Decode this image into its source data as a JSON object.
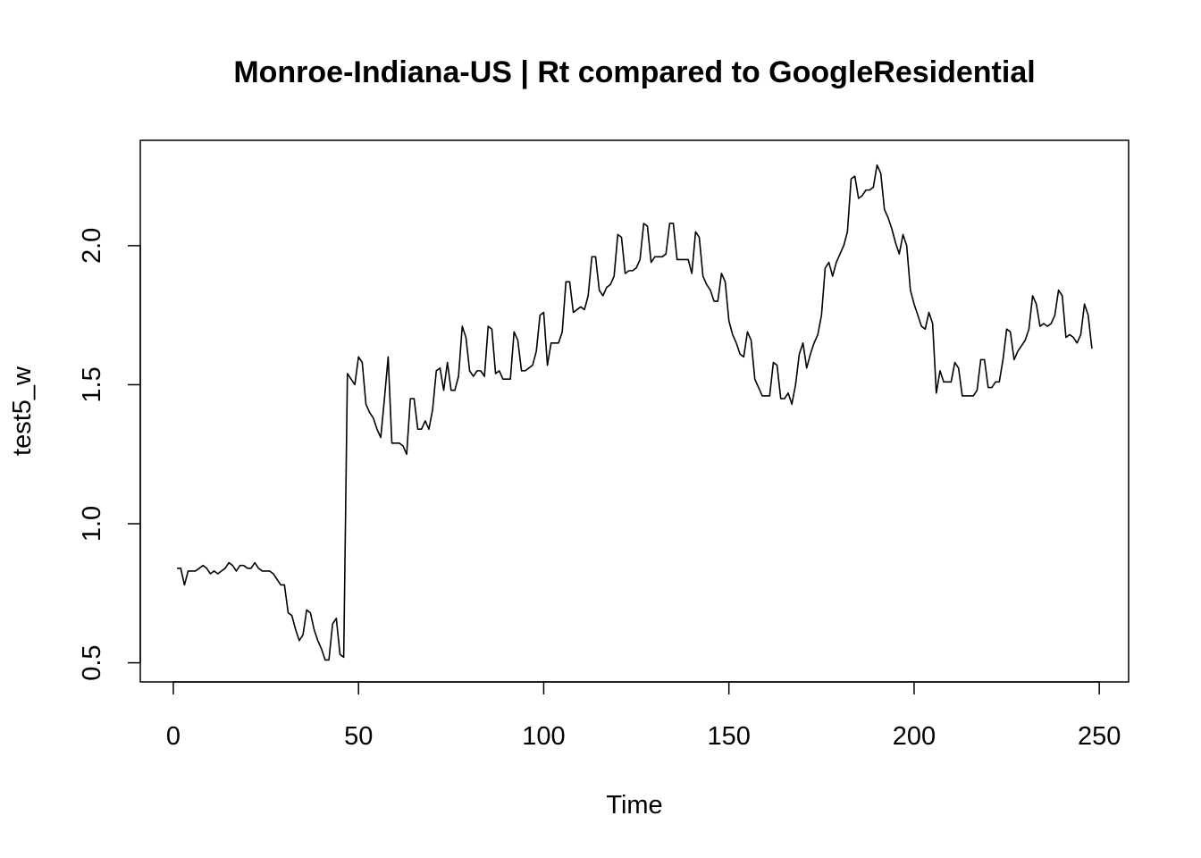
{
  "chart_data": {
    "type": "line",
    "title": "Monroe-Indiana-US | Rt compared to GoogleResidential",
    "xlabel": "Time",
    "ylabel": "test5_w",
    "xlim": [
      -8.92,
      257.92
    ],
    "ylim": [
      0.4312,
      2.3788
    ],
    "x_ticks": [
      0,
      50,
      100,
      150,
      200,
      250
    ],
    "y_ticks": [
      0.5,
      1.0,
      1.5,
      2.0
    ],
    "x_tick_labels": [
      "0",
      "50",
      "100",
      "150",
      "200",
      "250"
    ],
    "y_tick_labels": [
      "0.5",
      "1.0",
      "1.5",
      "2.0"
    ],
    "grid": false,
    "legend": "none",
    "line_color": "#000000",
    "series": [
      {
        "x_start": 1,
        "values": [
          0.84,
          0.84,
          0.78,
          0.83,
          0.83,
          0.83,
          0.84,
          0.85,
          0.84,
          0.82,
          0.83,
          0.82,
          0.83,
          0.84,
          0.86,
          0.85,
          0.83,
          0.85,
          0.85,
          0.84,
          0.84,
          0.86,
          0.84,
          0.83,
          0.83,
          0.83,
          0.82,
          0.8,
          0.78,
          0.78,
          0.68,
          0.67,
          0.62,
          0.58,
          0.6,
          0.69,
          0.68,
          0.62,
          0.58,
          0.55,
          0.51,
          0.51,
          0.64,
          0.66,
          0.53,
          0.52,
          1.54,
          1.52,
          1.5,
          1.6,
          1.58,
          1.43,
          1.4,
          1.38,
          1.34,
          1.31,
          1.45,
          1.6,
          1.29,
          1.29,
          1.29,
          1.28,
          1.25,
          1.45,
          1.45,
          1.34,
          1.34,
          1.37,
          1.34,
          1.41,
          1.55,
          1.56,
          1.48,
          1.58,
          1.48,
          1.48,
          1.53,
          1.71,
          1.67,
          1.55,
          1.53,
          1.55,
          1.55,
          1.53,
          1.71,
          1.7,
          1.54,
          1.55,
          1.52,
          1.52,
          1.52,
          1.69,
          1.66,
          1.55,
          1.55,
          1.56,
          1.57,
          1.62,
          1.75,
          1.76,
          1.57,
          1.65,
          1.65,
          1.65,
          1.69,
          1.87,
          1.87,
          1.76,
          1.77,
          1.78,
          1.77,
          1.82,
          1.96,
          1.96,
          1.84,
          1.82,
          1.85,
          1.86,
          1.89,
          2.04,
          2.03,
          1.9,
          1.91,
          1.91,
          1.92,
          1.95,
          2.08,
          2.07,
          1.94,
          1.96,
          1.96,
          1.96,
          1.97,
          2.08,
          2.08,
          1.95,
          1.95,
          1.95,
          1.95,
          1.9,
          2.05,
          2.03,
          1.89,
          1.86,
          1.84,
          1.8,
          1.8,
          1.9,
          1.87,
          1.73,
          1.68,
          1.65,
          1.61,
          1.6,
          1.69,
          1.66,
          1.52,
          1.49,
          1.46,
          1.46,
          1.46,
          1.58,
          1.57,
          1.45,
          1.45,
          1.47,
          1.43,
          1.5,
          1.61,
          1.65,
          1.56,
          1.61,
          1.65,
          1.68,
          1.75,
          1.92,
          1.94,
          1.89,
          1.94,
          1.97,
          2.0,
          2.05,
          2.24,
          2.25,
          2.17,
          2.18,
          2.2,
          2.2,
          2.21,
          2.29,
          2.26,
          2.13,
          2.1,
          2.06,
          2.01,
          1.97,
          2.04,
          2.0,
          1.84,
          1.79,
          1.75,
          1.71,
          1.7,
          1.76,
          1.72,
          1.47,
          1.55,
          1.51,
          1.51,
          1.51,
          1.58,
          1.56,
          1.46,
          1.46,
          1.46,
          1.46,
          1.48,
          1.59,
          1.59,
          1.49,
          1.49,
          1.51,
          1.51,
          1.59,
          1.7,
          1.69,
          1.59,
          1.62,
          1.64,
          1.66,
          1.7,
          1.82,
          1.79,
          1.71,
          1.72,
          1.71,
          1.72,
          1.75,
          1.84,
          1.82,
          1.67,
          1.68,
          1.67,
          1.65,
          1.68,
          1.79,
          1.75,
          1.63
        ]
      }
    ]
  }
}
